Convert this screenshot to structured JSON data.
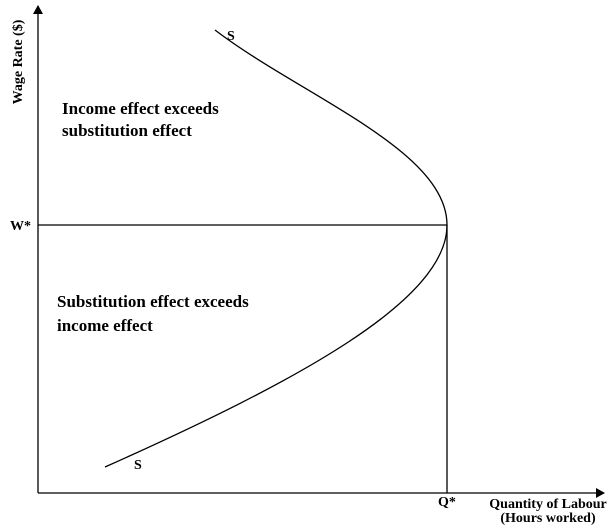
{
  "axes": {
    "y_label": "Wage Rate ($)",
    "x_label": [
      "Quantity of Labour",
      "(Hours worked)"
    ]
  },
  "points": {
    "w_star": "W*",
    "q_star": "Q*"
  },
  "curve": {
    "top_label": "S",
    "bottom_label": "S"
  },
  "regions": {
    "upper": [
      "Income effect exceeds",
      "substitution effect"
    ],
    "lower": [
      "Substitution effect exceeds",
      "income effect"
    ]
  }
}
